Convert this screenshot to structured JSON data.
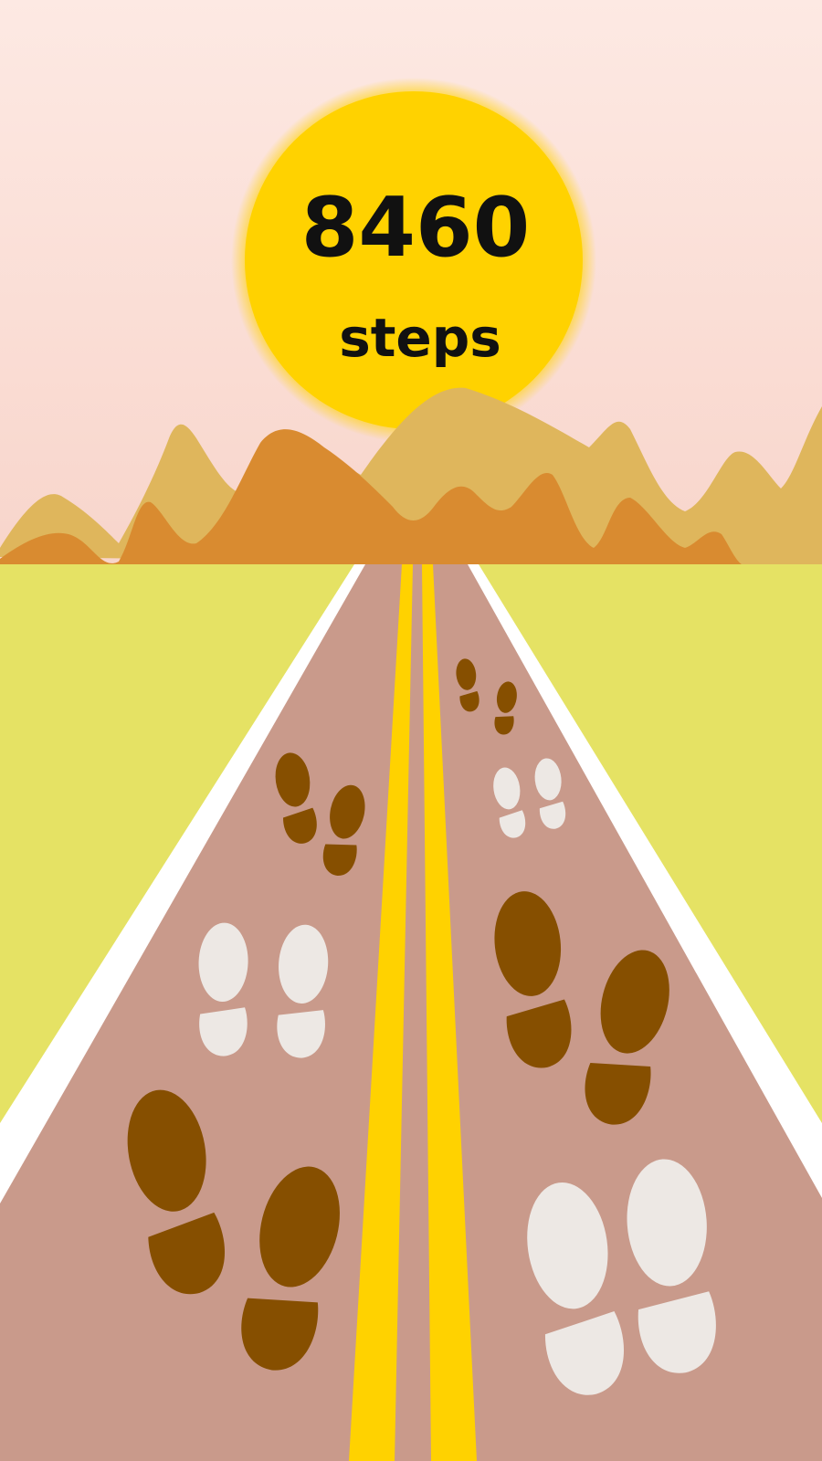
{
  "steps": {
    "count": "8460",
    "unit": "steps"
  },
  "colors": {
    "sky_top": "#fde8e2",
    "sky_bottom": "#f9d6cc",
    "sun": "#ffd200",
    "hills_back": "#dfb65c",
    "hills_front": "#d98b30",
    "field": "#e5e264",
    "road": "#c99a8b",
    "road_edge": "#ffffff",
    "center_line": "#ffd200",
    "footprint_brown": "#864f00",
    "footprint_white": "#ede8e4"
  }
}
